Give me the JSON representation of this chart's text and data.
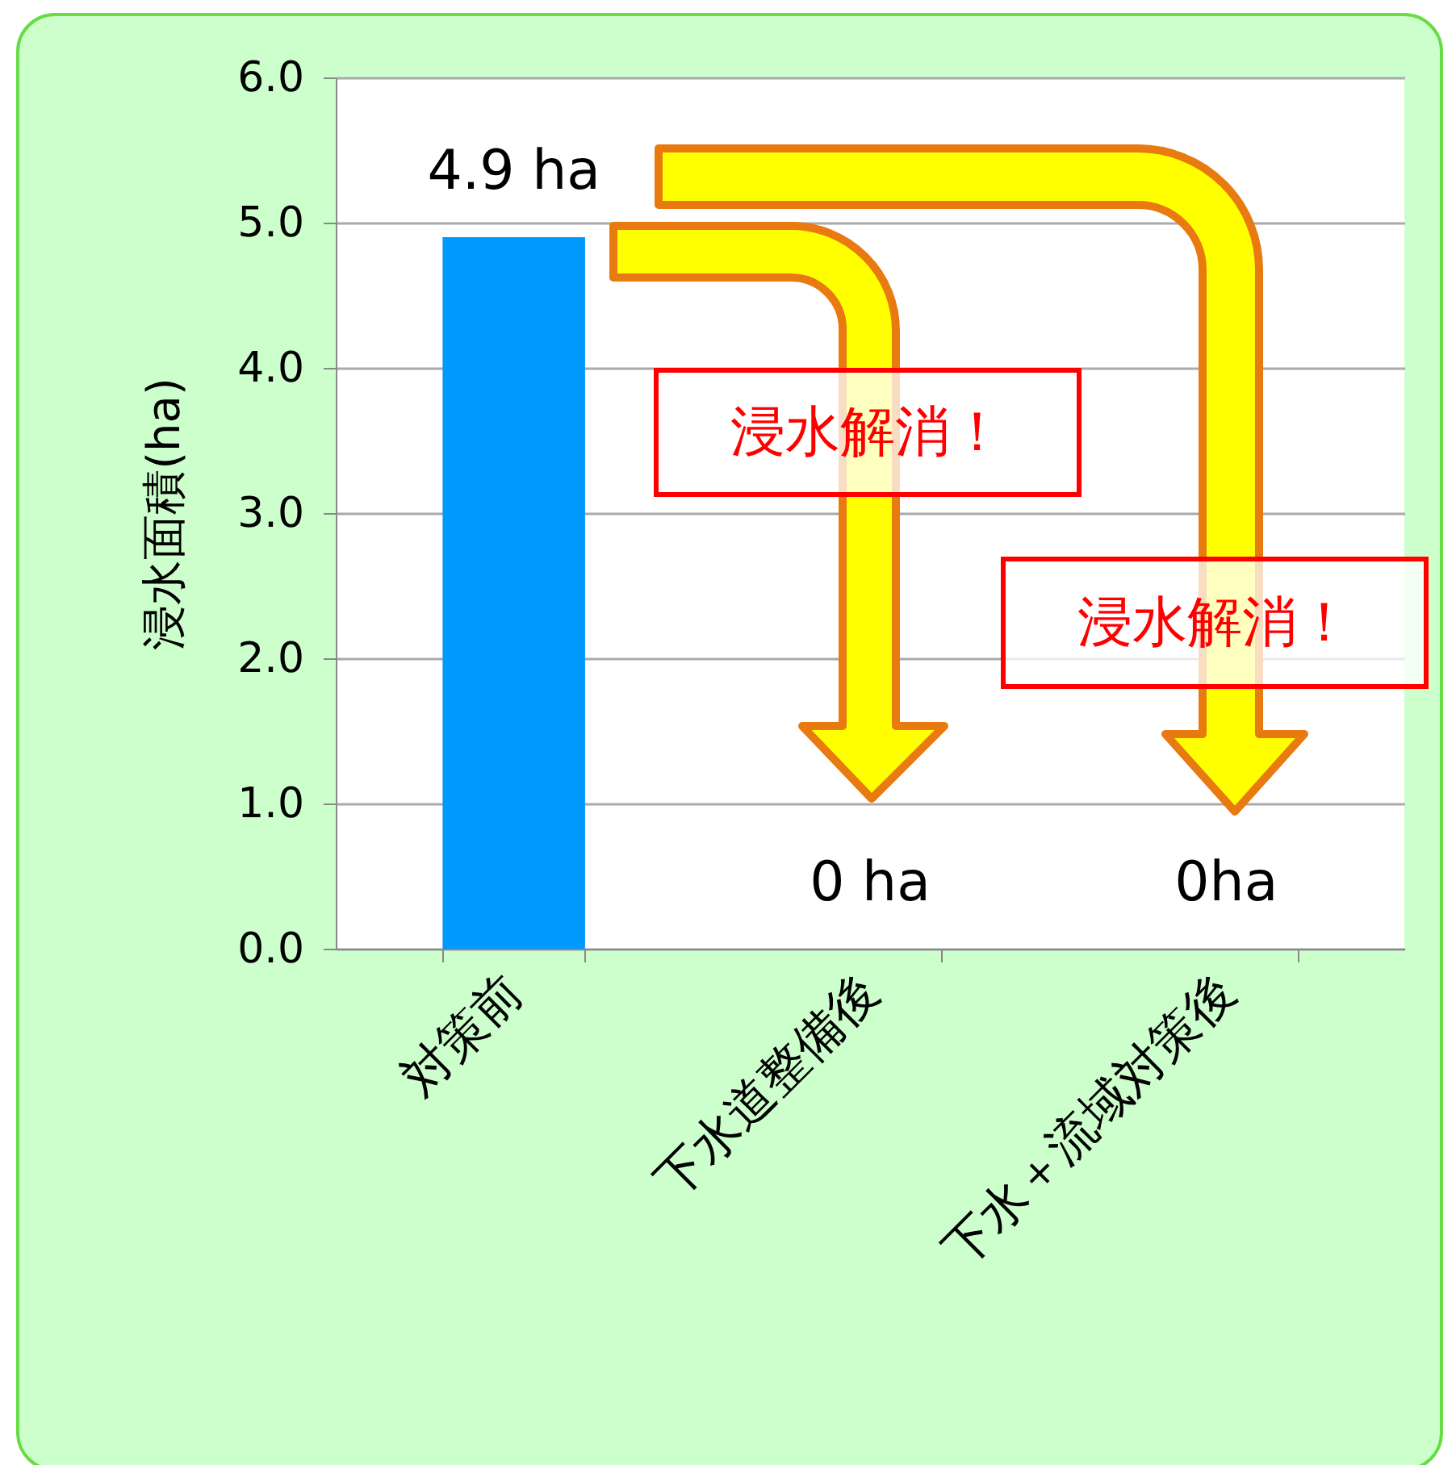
{
  "chart_data": {
    "type": "bar",
    "ylabel": "浸水面積(ha)",
    "categories": [
      "対策前",
      "下水道整備後",
      "下水＋流域対策後"
    ],
    "values": [
      4.9,
      0,
      0
    ],
    "color": "#0099ff",
    "value_labels": [
      "4.9 ha",
      "0 ha",
      "0ha"
    ],
    "ylim": [
      0,
      6
    ],
    "yticks": [
      {
        "value": 0,
        "label": "0.0"
      },
      {
        "value": 1,
        "label": "1.0"
      },
      {
        "value": 2,
        "label": "2.0"
      },
      {
        "value": 3,
        "label": "3.0"
      },
      {
        "value": 4,
        "label": "4.0"
      },
      {
        "value": 5,
        "label": "5.0"
      },
      {
        "value": 6,
        "label": "6.0"
      }
    ],
    "grid": "y",
    "annotations": [
      "浸水解消！",
      "浸水解消！"
    ]
  }
}
